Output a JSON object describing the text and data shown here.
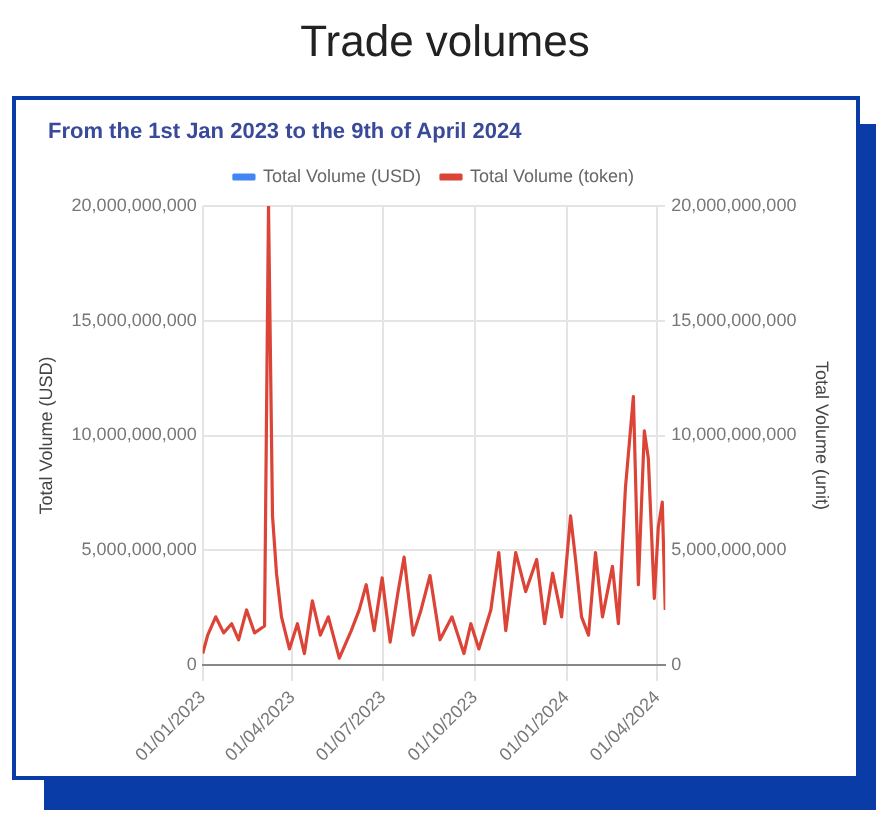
{
  "chart_data": {
    "type": "line",
    "title": "Trade volumes",
    "subtitle": "From the 1st Jan 2023 to the 9th of April 2024",
    "xlim": [
      "2023-01-01",
      "2024-04-09"
    ],
    "xticks": [
      {
        "value": "2023-01-01",
        "label": "01/01/2023"
      },
      {
        "value": "2023-04-01",
        "label": "01/04/2023"
      },
      {
        "value": "2023-07-01",
        "label": "01/07/2023"
      },
      {
        "value": "2023-10-01",
        "label": "01/10/2023"
      },
      {
        "value": "2024-01-01",
        "label": "01/01/2024"
      },
      {
        "value": "2024-04-01",
        "label": "01/04/2024"
      }
    ],
    "x": [
      "2023-01-01",
      "2023-01-06",
      "2023-01-14",
      "2023-01-22",
      "2023-01-30",
      "2023-02-06",
      "2023-02-14",
      "2023-02-22",
      "2023-03-04",
      "2023-03-08",
      "2023-03-12",
      "2023-03-16",
      "2023-03-21",
      "2023-03-29",
      "2023-04-06",
      "2023-04-13",
      "2023-04-21",
      "2023-04-29",
      "2023-05-07",
      "2023-05-18",
      "2023-05-30",
      "2023-06-07",
      "2023-06-14",
      "2023-06-22",
      "2023-06-30",
      "2023-07-08",
      "2023-07-16",
      "2023-07-22",
      "2023-07-31",
      "2023-08-08",
      "2023-08-17",
      "2023-08-27",
      "2023-09-08",
      "2023-09-20",
      "2023-09-27",
      "2023-10-05",
      "2023-10-17",
      "2023-10-25",
      "2023-11-01",
      "2023-11-11",
      "2023-11-21",
      "2023-12-02",
      "2023-12-10",
      "2023-12-18",
      "2023-12-27",
      "2024-01-05",
      "2024-01-10",
      "2024-01-16",
      "2024-01-23",
      "2024-01-30",
      "2024-02-06",
      "2024-02-16",
      "2024-02-22",
      "2024-02-29",
      "2024-03-08",
      "2024-03-13",
      "2024-03-19",
      "2024-03-23",
      "2024-03-29",
      "2024-04-02",
      "2024-04-06",
      "2024-04-09"
    ],
    "ylabel": "Total Volume (USD)",
    "y2label": "Total Volume (unit)",
    "ylim": [
      0,
      20000000000
    ],
    "yticks": [
      0,
      {
        "value": 5000000000,
        "label": "5,000,000,000"
      },
      {
        "value": 10000000000,
        "label": "10,000,000,000"
      },
      {
        "value": 15000000000,
        "label": "15,000,000,000"
      },
      {
        "value": 20000000000,
        "label": "20,000,000,000"
      }
    ],
    "y2lim": [
      0,
      20000000000
    ],
    "y2ticks": [
      0,
      {
        "value": 5000000000,
        "label": "5,000,000,000"
      },
      {
        "value": 10000000000,
        "label": "10,000,000,000"
      },
      {
        "value": 15000000000,
        "label": "15,000,000,000"
      },
      {
        "value": 20000000000,
        "label": "20,000,000,000"
      }
    ],
    "grid": true,
    "legend": "top",
    "marker": "none",
    "line_style": "solid",
    "series": [
      {
        "name": "Total Volume (USD)",
        "color": "#4285f4",
        "values": [
          null,
          null,
          null,
          null,
          null,
          null,
          null,
          null,
          null,
          null,
          null,
          null,
          null,
          null,
          null,
          null,
          null,
          null,
          null,
          null,
          null,
          null,
          null,
          null,
          null,
          null,
          null,
          null,
          null,
          null,
          null,
          null,
          null,
          null,
          null,
          null,
          null,
          null,
          null,
          null,
          null,
          null,
          null,
          null,
          null,
          null,
          null,
          null,
          null,
          null,
          null,
          null,
          null,
          null,
          null,
          null,
          null,
          null,
          null,
          null,
          null,
          null
        ]
      },
      {
        "name": "Total Volume (token)",
        "color": "#db4437",
        "axis": "y2",
        "values": [
          500000000,
          1300000000,
          2100000000,
          1400000000,
          1800000000,
          1100000000,
          2400000000,
          1400000000,
          1700000000,
          20000000000,
          6500000000,
          4000000000,
          2100000000,
          700000000,
          1800000000,
          500000000,
          2800000000,
          1300000000,
          2100000000,
          300000000,
          1500000000,
          2400000000,
          3500000000,
          1500000000,
          3800000000,
          1000000000,
          3200000000,
          4700000000,
          1300000000,
          2400000000,
          3900000000,
          1100000000,
          2100000000,
          500000000,
          1800000000,
          700000000,
          2400000000,
          4900000000,
          1500000000,
          4900000000,
          3200000000,
          4600000000,
          1800000000,
          4000000000,
          2100000000,
          6500000000,
          4600000000,
          2100000000,
          1300000000,
          4900000000,
          2100000000,
          4300000000,
          1800000000,
          7700000000,
          11700000000,
          3500000000,
          10200000000,
          9000000000,
          2900000000,
          6000000000,
          7100000000,
          2400000000
        ]
      }
    ]
  }
}
